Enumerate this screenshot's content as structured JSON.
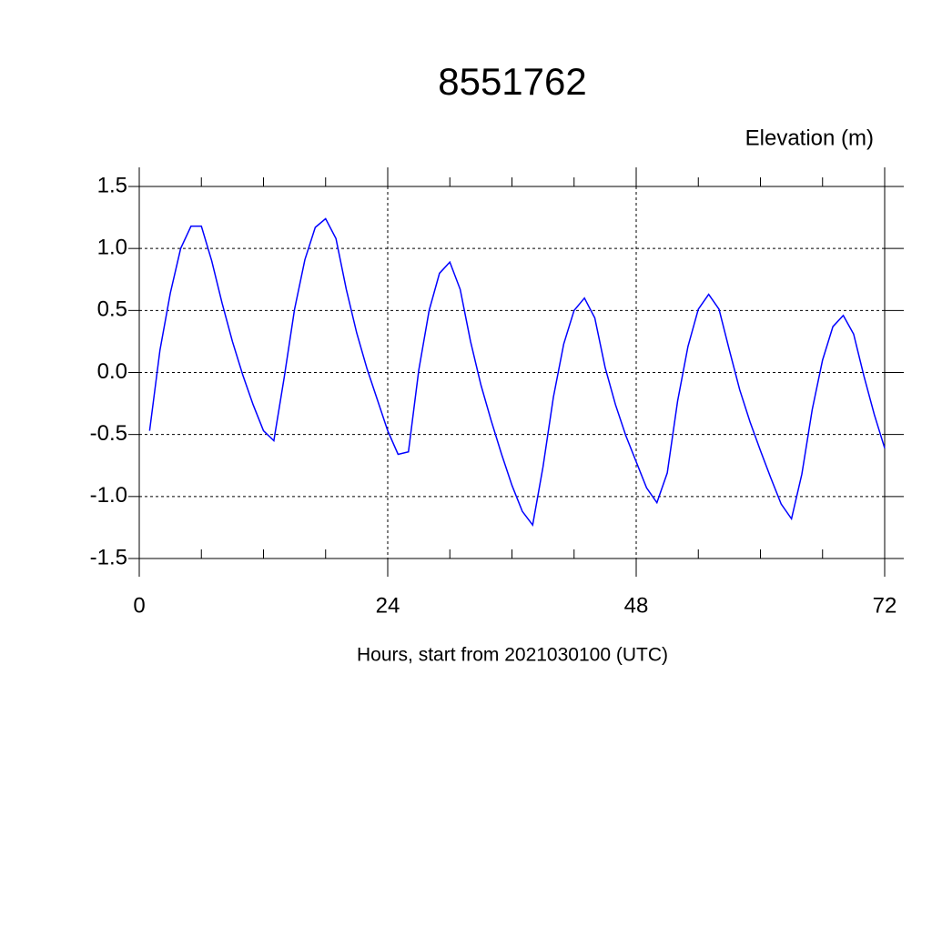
{
  "chart_data": {
    "type": "line",
    "title": "8551762",
    "ylabel": "Elevation (m)",
    "xlabel": "Hours, start from 2021030100 (UTC)",
    "x": [
      1,
      2,
      3,
      4,
      5,
      6,
      7,
      8,
      9,
      10,
      11,
      12,
      13,
      14,
      15,
      16,
      17,
      18,
      19,
      20,
      21,
      22,
      23,
      24,
      25,
      26,
      27,
      28,
      29,
      30,
      31,
      32,
      33,
      34,
      35,
      36,
      37,
      38,
      39,
      40,
      41,
      42,
      43,
      44,
      45,
      46,
      47,
      48,
      49,
      50,
      51,
      52,
      53,
      54,
      55,
      56,
      57,
      58,
      59,
      60,
      61,
      62,
      63,
      64,
      65,
      66,
      67,
      68,
      69,
      70,
      71,
      72
    ],
    "series": [
      {
        "color": "#0000ff",
        "values": [
          -0.47,
          0.18,
          0.64,
          1.0,
          1.18,
          1.18,
          0.9,
          0.56,
          0.25,
          -0.02,
          -0.26,
          -0.47,
          -0.55,
          -0.04,
          0.51,
          0.91,
          1.17,
          1.24,
          1.08,
          0.67,
          0.32,
          0.03,
          -0.22,
          -0.47,
          -0.66,
          -0.64,
          0.02,
          0.5,
          0.8,
          0.89,
          0.67,
          0.25,
          -0.1,
          -0.39,
          -0.66,
          -0.91,
          -1.12,
          -1.23,
          -0.76,
          -0.2,
          0.23,
          0.5,
          0.6,
          0.44,
          0.04,
          -0.26,
          -0.51,
          -0.72,
          -0.93,
          -1.05,
          -0.81,
          -0.23,
          0.21,
          0.51,
          0.63,
          0.51,
          0.18,
          -0.14,
          -0.4,
          -0.63,
          -0.85,
          -1.06,
          -1.18,
          -0.82,
          -0.3,
          0.1,
          0.37,
          0.46,
          0.31,
          -0.03,
          -0.34,
          -0.61
        ]
      }
    ],
    "xlim": [
      0,
      72
    ],
    "xticks": [
      0,
      24,
      48,
      72
    ],
    "xminorticks": [
      6,
      12,
      18,
      30,
      36,
      42,
      54,
      60,
      66
    ],
    "ylim": [
      -1.5,
      1.5
    ],
    "yticks": [
      -1.5,
      {
        "value": -1.0,
        "label": "-1.0"
      },
      -0.5,
      {
        "value": 0.0,
        "label": "0.0"
      },
      0.5,
      {
        "value": 1.0,
        "label": "1.0"
      },
      1.5
    ],
    "grid": true
  }
}
